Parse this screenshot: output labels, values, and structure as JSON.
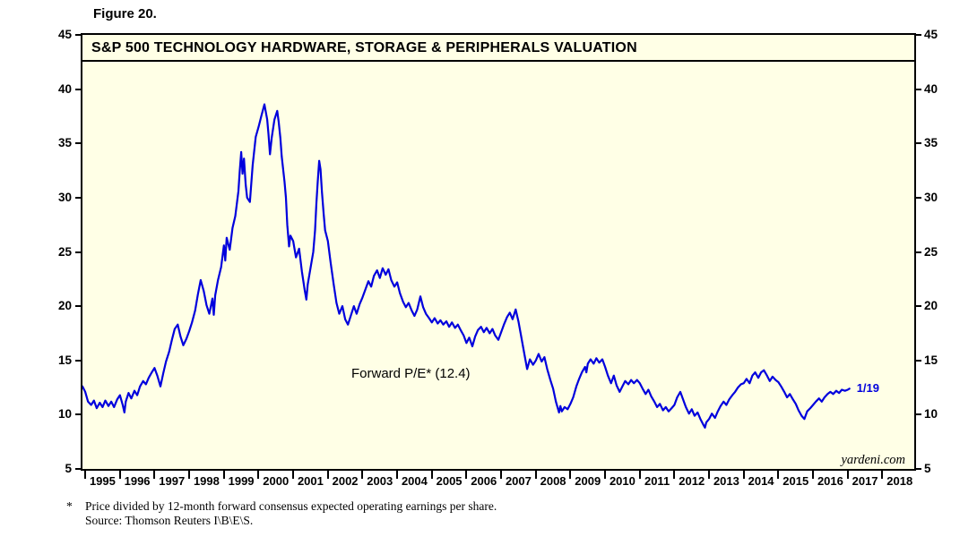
{
  "figure_label": "Figure 20.",
  "chart_data": {
    "type": "line",
    "title": "S&P 500 TECHNOLOGY HARDWARE, STORAGE & PERIPHERALS VALUATION",
    "annotation": "Forward P/E* (12.4)",
    "end_label": "1/19",
    "watermark": "yardeni.com",
    "line_color": "#0000dd",
    "plot_bg": "#ffffe6",
    "grid": false,
    "legend": "none",
    "ylim": [
      5,
      45
    ],
    "yticks": [
      5,
      10,
      15,
      20,
      25,
      30,
      35,
      40,
      45
    ],
    "xlim": [
      1994.92,
      2018.92
    ],
    "xtick_years": [
      1995,
      1996,
      1997,
      1998,
      1999,
      2000,
      2001,
      2002,
      2003,
      2004,
      2005,
      2006,
      2007,
      2008,
      2009,
      2010,
      2011,
      2012,
      2013,
      2014,
      2015,
      2016,
      2017,
      2018
    ],
    "xtick_labels": [
      "1995",
      "1996",
      "1997",
      "1998",
      "1999",
      "2000",
      "2001",
      "2002",
      "2003",
      "2004",
      "2005",
      "2006",
      "2007",
      "2008",
      "2009",
      "2010",
      "2011",
      "2012",
      "2013",
      "2014",
      "2015",
      "2016",
      "2017",
      "2018"
    ],
    "series": [
      {
        "name": "Forward P/E",
        "points": [
          [
            1994.92,
            12.6
          ],
          [
            1995.0,
            12.1
          ],
          [
            1995.08,
            11.2
          ],
          [
            1995.17,
            10.9
          ],
          [
            1995.25,
            11.3
          ],
          [
            1995.33,
            10.6
          ],
          [
            1995.42,
            11.1
          ],
          [
            1995.5,
            10.7
          ],
          [
            1995.58,
            11.3
          ],
          [
            1995.67,
            10.8
          ],
          [
            1995.75,
            11.2
          ],
          [
            1995.83,
            10.7
          ],
          [
            1995.92,
            11.4
          ],
          [
            1996.0,
            11.8
          ],
          [
            1996.08,
            10.9
          ],
          [
            1996.13,
            10.2
          ],
          [
            1996.17,
            11.2
          ],
          [
            1996.25,
            12.0
          ],
          [
            1996.33,
            11.5
          ],
          [
            1996.42,
            12.2
          ],
          [
            1996.5,
            11.8
          ],
          [
            1996.58,
            12.6
          ],
          [
            1996.67,
            13.1
          ],
          [
            1996.75,
            12.8
          ],
          [
            1996.83,
            13.4
          ],
          [
            1996.92,
            13.9
          ],
          [
            1997.0,
            14.3
          ],
          [
            1997.08,
            13.6
          ],
          [
            1997.17,
            12.6
          ],
          [
            1997.25,
            13.8
          ],
          [
            1997.33,
            14.9
          ],
          [
            1997.42,
            15.8
          ],
          [
            1997.5,
            16.9
          ],
          [
            1997.58,
            17.9
          ],
          [
            1997.67,
            18.3
          ],
          [
            1997.75,
            17.2
          ],
          [
            1997.83,
            16.4
          ],
          [
            1997.92,
            17.0
          ],
          [
            1998.0,
            17.7
          ],
          [
            1998.08,
            18.5
          ],
          [
            1998.17,
            19.6
          ],
          [
            1998.25,
            21.1
          ],
          [
            1998.33,
            22.4
          ],
          [
            1998.42,
            21.4
          ],
          [
            1998.5,
            20.1
          ],
          [
            1998.58,
            19.3
          ],
          [
            1998.67,
            20.7
          ],
          [
            1998.71,
            19.2
          ],
          [
            1998.75,
            21.0
          ],
          [
            1998.83,
            22.4
          ],
          [
            1998.92,
            23.6
          ],
          [
            1999.0,
            25.6
          ],
          [
            1999.04,
            24.2
          ],
          [
            1999.08,
            26.3
          ],
          [
            1999.17,
            25.2
          ],
          [
            1999.25,
            27.2
          ],
          [
            1999.33,
            28.3
          ],
          [
            1999.42,
            30.6
          ],
          [
            1999.46,
            32.5
          ],
          [
            1999.5,
            34.2
          ],
          [
            1999.54,
            32.2
          ],
          [
            1999.58,
            33.6
          ],
          [
            1999.63,
            31.2
          ],
          [
            1999.67,
            30.0
          ],
          [
            1999.75,
            29.6
          ],
          [
            1999.83,
            33.0
          ],
          [
            1999.92,
            35.6
          ],
          [
            2000.0,
            36.5
          ],
          [
            2000.08,
            37.5
          ],
          [
            2000.17,
            38.6
          ],
          [
            2000.25,
            37.2
          ],
          [
            2000.29,
            35.8
          ],
          [
            2000.33,
            34.0
          ],
          [
            2000.38,
            35.5
          ],
          [
            2000.46,
            37.2
          ],
          [
            2000.54,
            38.0
          ],
          [
            2000.58,
            37.0
          ],
          [
            2000.63,
            35.5
          ],
          [
            2000.67,
            33.8
          ],
          [
            2000.75,
            31.5
          ],
          [
            2000.79,
            30.0
          ],
          [
            2000.83,
            27.5
          ],
          [
            2000.88,
            25.5
          ],
          [
            2000.92,
            26.5
          ],
          [
            2001.0,
            26.0
          ],
          [
            2001.08,
            24.5
          ],
          [
            2001.17,
            25.3
          ],
          [
            2001.25,
            23.2
          ],
          [
            2001.33,
            21.5
          ],
          [
            2001.38,
            20.6
          ],
          [
            2001.42,
            22.0
          ],
          [
            2001.5,
            23.5
          ],
          [
            2001.58,
            25.0
          ],
          [
            2001.63,
            27.0
          ],
          [
            2001.67,
            29.5
          ],
          [
            2001.71,
            31.5
          ],
          [
            2001.75,
            33.4
          ],
          [
            2001.79,
            32.6
          ],
          [
            2001.83,
            30.5
          ],
          [
            2001.88,
            28.5
          ],
          [
            2001.92,
            27.0
          ],
          [
            2002.0,
            26.0
          ],
          [
            2002.08,
            24.0
          ],
          [
            2002.17,
            22.0
          ],
          [
            2002.25,
            20.3
          ],
          [
            2002.33,
            19.3
          ],
          [
            2002.42,
            20.0
          ],
          [
            2002.5,
            18.8
          ],
          [
            2002.58,
            18.3
          ],
          [
            2002.67,
            19.2
          ],
          [
            2002.75,
            20.0
          ],
          [
            2002.83,
            19.3
          ],
          [
            2002.92,
            20.2
          ],
          [
            2003.0,
            20.8
          ],
          [
            2003.08,
            21.5
          ],
          [
            2003.17,
            22.3
          ],
          [
            2003.25,
            21.8
          ],
          [
            2003.33,
            22.8
          ],
          [
            2003.42,
            23.3
          ],
          [
            2003.5,
            22.6
          ],
          [
            2003.58,
            23.5
          ],
          [
            2003.67,
            22.9
          ],
          [
            2003.75,
            23.4
          ],
          [
            2003.83,
            22.4
          ],
          [
            2003.92,
            21.8
          ],
          [
            2004.0,
            22.2
          ],
          [
            2004.08,
            21.2
          ],
          [
            2004.17,
            20.4
          ],
          [
            2004.25,
            19.9
          ],
          [
            2004.33,
            20.3
          ],
          [
            2004.42,
            19.6
          ],
          [
            2004.5,
            19.1
          ],
          [
            2004.58,
            19.7
          ],
          [
            2004.67,
            20.9
          ],
          [
            2004.75,
            19.9
          ],
          [
            2004.83,
            19.3
          ],
          [
            2004.92,
            18.9
          ],
          [
            2005.0,
            18.5
          ],
          [
            2005.08,
            18.9
          ],
          [
            2005.17,
            18.4
          ],
          [
            2005.25,
            18.7
          ],
          [
            2005.33,
            18.3
          ],
          [
            2005.42,
            18.6
          ],
          [
            2005.5,
            18.1
          ],
          [
            2005.58,
            18.5
          ],
          [
            2005.67,
            18.0
          ],
          [
            2005.75,
            18.3
          ],
          [
            2005.83,
            17.8
          ],
          [
            2005.92,
            17.3
          ],
          [
            2006.0,
            16.6
          ],
          [
            2006.08,
            17.1
          ],
          [
            2006.17,
            16.3
          ],
          [
            2006.25,
            17.2
          ],
          [
            2006.33,
            17.8
          ],
          [
            2006.42,
            18.1
          ],
          [
            2006.5,
            17.6
          ],
          [
            2006.58,
            18.0
          ],
          [
            2006.67,
            17.5
          ],
          [
            2006.75,
            17.9
          ],
          [
            2006.83,
            17.3
          ],
          [
            2006.92,
            16.9
          ],
          [
            2007.0,
            17.6
          ],
          [
            2007.08,
            18.3
          ],
          [
            2007.17,
            19.0
          ],
          [
            2007.25,
            19.4
          ],
          [
            2007.33,
            18.8
          ],
          [
            2007.42,
            19.7
          ],
          [
            2007.5,
            18.6
          ],
          [
            2007.58,
            17.2
          ],
          [
            2007.67,
            15.6
          ],
          [
            2007.75,
            14.2
          ],
          [
            2007.83,
            15.1
          ],
          [
            2007.92,
            14.6
          ],
          [
            2008.0,
            15.0
          ],
          [
            2008.08,
            15.6
          ],
          [
            2008.17,
            14.9
          ],
          [
            2008.25,
            15.3
          ],
          [
            2008.33,
            14.2
          ],
          [
            2008.42,
            13.2
          ],
          [
            2008.5,
            12.4
          ],
          [
            2008.58,
            11.2
          ],
          [
            2008.67,
            10.2
          ],
          [
            2008.71,
            10.8
          ],
          [
            2008.75,
            10.3
          ],
          [
            2008.83,
            10.7
          ],
          [
            2008.92,
            10.5
          ],
          [
            2009.0,
            11.0
          ],
          [
            2009.08,
            11.6
          ],
          [
            2009.17,
            12.6
          ],
          [
            2009.25,
            13.3
          ],
          [
            2009.33,
            13.9
          ],
          [
            2009.42,
            14.4
          ],
          [
            2009.46,
            13.9
          ],
          [
            2009.5,
            14.7
          ],
          [
            2009.58,
            15.1
          ],
          [
            2009.67,
            14.7
          ],
          [
            2009.75,
            15.2
          ],
          [
            2009.83,
            14.8
          ],
          [
            2009.92,
            15.1
          ],
          [
            2010.0,
            14.4
          ],
          [
            2010.08,
            13.6
          ],
          [
            2010.17,
            12.9
          ],
          [
            2010.25,
            13.6
          ],
          [
            2010.33,
            12.7
          ],
          [
            2010.42,
            12.1
          ],
          [
            2010.5,
            12.6
          ],
          [
            2010.58,
            13.1
          ],
          [
            2010.67,
            12.8
          ],
          [
            2010.75,
            13.2
          ],
          [
            2010.83,
            12.9
          ],
          [
            2010.92,
            13.2
          ],
          [
            2011.0,
            12.9
          ],
          [
            2011.08,
            12.4
          ],
          [
            2011.17,
            11.9
          ],
          [
            2011.25,
            12.3
          ],
          [
            2011.33,
            11.7
          ],
          [
            2011.42,
            11.2
          ],
          [
            2011.5,
            10.7
          ],
          [
            2011.58,
            11.0
          ],
          [
            2011.67,
            10.4
          ],
          [
            2011.75,
            10.7
          ],
          [
            2011.83,
            10.3
          ],
          [
            2011.92,
            10.6
          ],
          [
            2012.0,
            10.9
          ],
          [
            2012.08,
            11.6
          ],
          [
            2012.17,
            12.1
          ],
          [
            2012.25,
            11.4
          ],
          [
            2012.33,
            10.7
          ],
          [
            2012.42,
            10.1
          ],
          [
            2012.5,
            10.5
          ],
          [
            2012.58,
            9.9
          ],
          [
            2012.67,
            10.2
          ],
          [
            2012.75,
            9.6
          ],
          [
            2012.83,
            9.1
          ],
          [
            2012.88,
            8.8
          ],
          [
            2012.92,
            9.3
          ],
          [
            2013.0,
            9.6
          ],
          [
            2013.08,
            10.1
          ],
          [
            2013.17,
            9.7
          ],
          [
            2013.25,
            10.3
          ],
          [
            2013.33,
            10.8
          ],
          [
            2013.42,
            11.2
          ],
          [
            2013.5,
            10.9
          ],
          [
            2013.58,
            11.4
          ],
          [
            2013.67,
            11.8
          ],
          [
            2013.75,
            12.1
          ],
          [
            2013.83,
            12.5
          ],
          [
            2013.92,
            12.8
          ],
          [
            2014.0,
            12.9
          ],
          [
            2014.08,
            13.3
          ],
          [
            2014.17,
            12.9
          ],
          [
            2014.25,
            13.6
          ],
          [
            2014.33,
            13.9
          ],
          [
            2014.42,
            13.4
          ],
          [
            2014.5,
            13.9
          ],
          [
            2014.58,
            14.1
          ],
          [
            2014.67,
            13.6
          ],
          [
            2014.75,
            13.1
          ],
          [
            2014.83,
            13.5
          ],
          [
            2014.92,
            13.2
          ],
          [
            2015.0,
            13.0
          ],
          [
            2015.08,
            12.6
          ],
          [
            2015.17,
            12.1
          ],
          [
            2015.25,
            11.6
          ],
          [
            2015.33,
            11.9
          ],
          [
            2015.42,
            11.4
          ],
          [
            2015.5,
            11.0
          ],
          [
            2015.58,
            10.4
          ],
          [
            2015.67,
            9.9
          ],
          [
            2015.75,
            9.6
          ],
          [
            2015.83,
            10.3
          ],
          [
            2015.92,
            10.6
          ],
          [
            2016.0,
            10.9
          ],
          [
            2016.08,
            11.2
          ],
          [
            2016.17,
            11.5
          ],
          [
            2016.25,
            11.2
          ],
          [
            2016.33,
            11.6
          ],
          [
            2016.42,
            11.9
          ],
          [
            2016.5,
            12.1
          ],
          [
            2016.58,
            11.9
          ],
          [
            2016.67,
            12.2
          ],
          [
            2016.75,
            12.0
          ],
          [
            2016.83,
            12.3
          ],
          [
            2016.92,
            12.2
          ],
          [
            2017.0,
            12.3
          ],
          [
            2017.05,
            12.4
          ]
        ]
      }
    ]
  },
  "footnote": {
    "star": "*",
    "line1": "Price divided by 12-month forward consensus expected operating earnings per share.",
    "line2": "Source: Thomson Reuters I\\B\\E\\S."
  }
}
